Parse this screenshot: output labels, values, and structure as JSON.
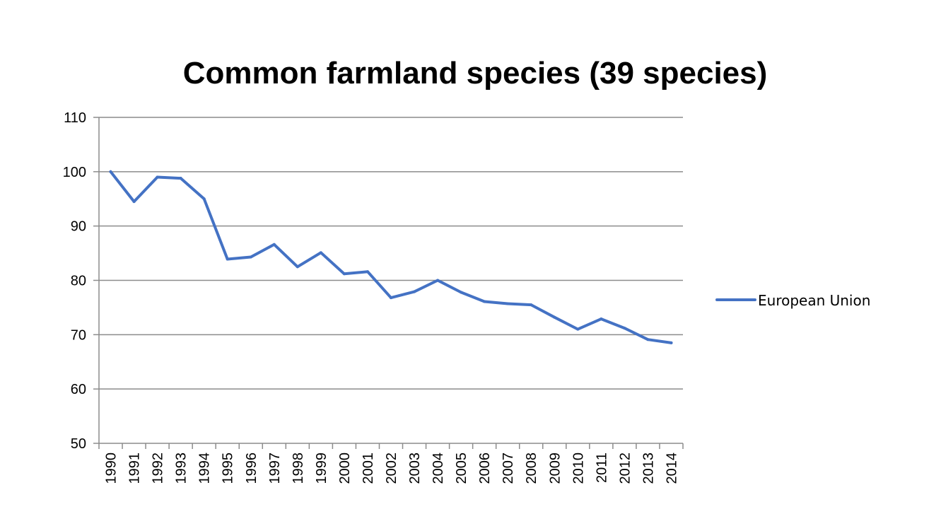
{
  "chart_data": {
    "type": "line",
    "title": "Common farmland species (39 species)",
    "xlabel": "",
    "ylabel": "",
    "ylim": [
      50,
      110
    ],
    "yticks": [
      50,
      60,
      70,
      80,
      90,
      100,
      110
    ],
    "grid": true,
    "legend_position": "right",
    "categories": [
      "1990",
      "1991",
      "1992",
      "1993",
      "1994",
      "1995",
      "1996",
      "1997",
      "1998",
      "1999",
      "2000",
      "2001",
      "2002",
      "2003",
      "2004",
      "2005",
      "2006",
      "2007",
      "2008",
      "2009",
      "2010",
      "2011",
      "2012",
      "2013",
      "2014"
    ],
    "series": [
      {
        "name": "European Union",
        "color": "#4472C4",
        "values": [
          100.0,
          94.5,
          99.0,
          98.8,
          95.0,
          83.9,
          84.3,
          86.6,
          82.5,
          85.1,
          81.2,
          81.6,
          76.8,
          77.9,
          80.0,
          77.8,
          76.1,
          75.7,
          75.5,
          73.2,
          71.0,
          72.9,
          71.2,
          69.1,
          68.5
        ]
      }
    ]
  },
  "colors": {
    "series": "#4472C4",
    "grid": "#8c8c8c",
    "axis": "#8c8c8c",
    "text": "#000000"
  }
}
